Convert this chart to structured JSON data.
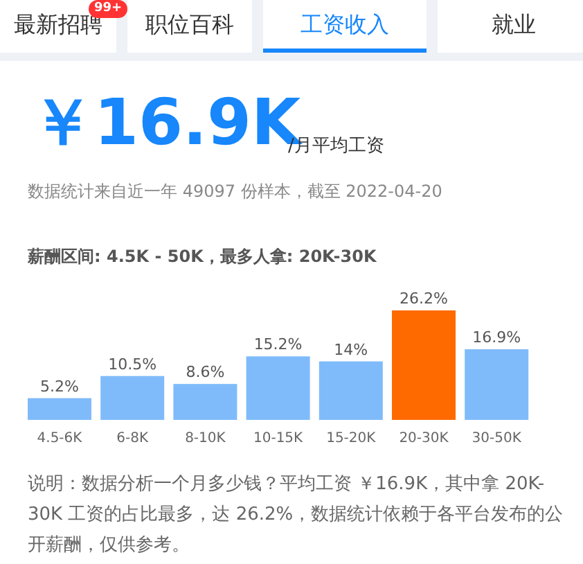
{
  "chart_data": {
    "type": "bar",
    "title": "￥16.9K",
    "subtitle": "/月平均工资",
    "annotations": [
      "最新招聘",
      "99+",
      "职位百科",
      "工资收入",
      "就业",
      "数据统计来自近一年 49097 份样本，截至 2022-04-20",
      "薪酬区间: 4.5K - 50K，最多人拿: 20K-30K",
      "说明：数据分析一个月多少钱？平均工资 ￥16.9K，其中拿 20K-30K 工资的占比最多，达 26.2%，数据统计依赖于各平台发布的公开薪酬，仅供参考。"
    ],
    "categories": [
      "4.5-6K",
      "6-8K",
      "8-10K",
      "10-15K",
      "15-20K",
      "20-30K",
      "30-50K"
    ],
    "values": [
      5.2,
      10.5,
      8.6,
      15.2,
      14,
      26.2,
      16.9
    ],
    "value_labels": [
      "5.2%",
      "10.5%",
      "8.6%",
      "15.2%",
      "14%",
      "26.2%",
      "16.9%"
    ],
    "colors": [
      "#7fbbfa",
      "#7fbbfa",
      "#7fbbfa",
      "#7fbbfa",
      "#7fbbfa",
      "#ff6a00",
      "#7fbbfa"
    ]
  }
}
